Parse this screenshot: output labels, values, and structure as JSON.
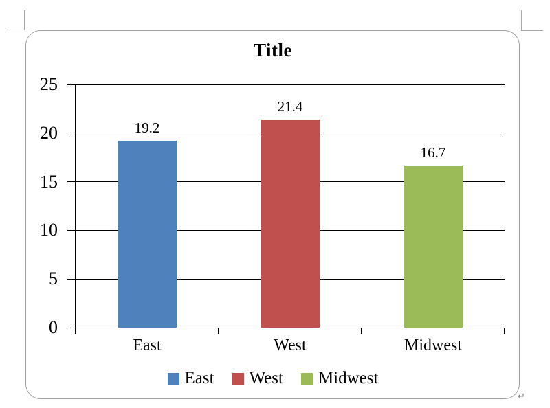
{
  "page": {
    "return_mark": "↵"
  },
  "chart_data": {
    "type": "bar",
    "title": "Title",
    "categories": [
      "East",
      "West",
      "Midwest"
    ],
    "values": [
      19.2,
      21.4,
      16.7
    ],
    "value_labels": [
      "19.2",
      "21.4",
      "16.7"
    ],
    "colors": [
      "#4F81BD",
      "#C0504D",
      "#9BBB59"
    ],
    "xlabel": "",
    "ylabel": "",
    "ylim": [
      0,
      25
    ],
    "yticks": [
      0,
      5,
      10,
      15,
      20,
      25
    ],
    "grid": true,
    "legend": {
      "position": "bottom",
      "entries": [
        "East",
        "West",
        "Midwest"
      ]
    }
  }
}
